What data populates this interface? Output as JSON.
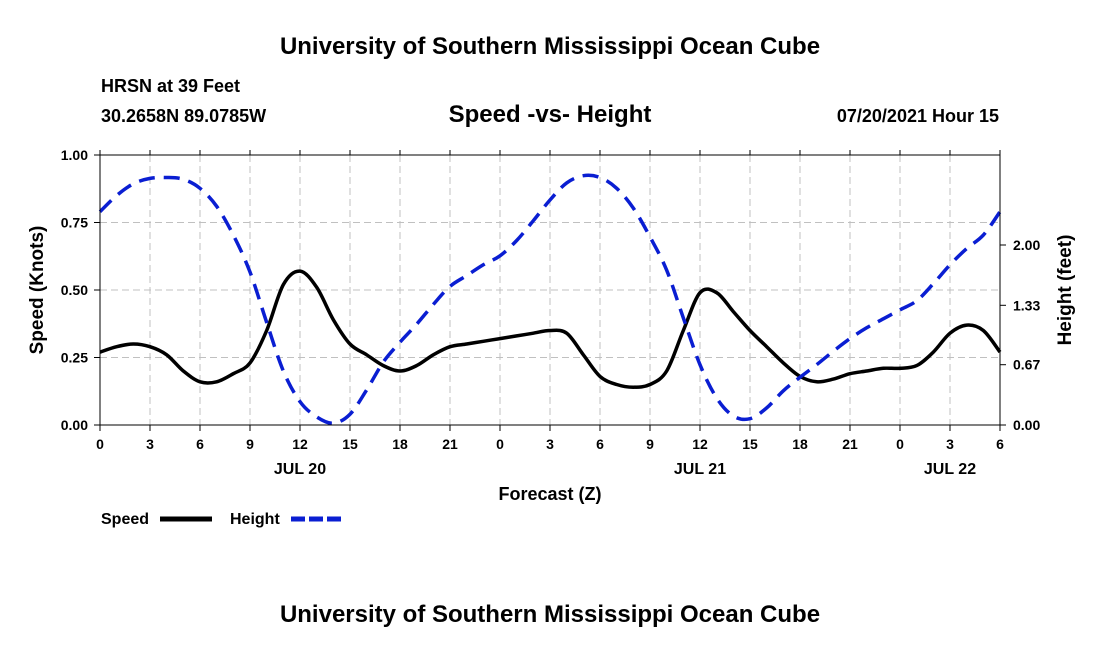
{
  "header": {
    "title": "University of Southern Mississippi Ocean Cube",
    "station": "HRSN at 39 Feet",
    "coords": "30.2658N  89.0785W",
    "subtitle": "Speed -vs- Height",
    "datetime": "07/20/2021 Hour 15"
  },
  "footer": {
    "title": "University of Southern Mississippi Ocean Cube"
  },
  "chart_data": {
    "type": "line",
    "title": "Speed -vs- Height",
    "xlabel": "Forecast (Z)",
    "xlim": [
      0,
      54
    ],
    "x_ticks": [
      0,
      3,
      6,
      9,
      12,
      15,
      18,
      21,
      24,
      27,
      30,
      33,
      36,
      39,
      42,
      45,
      48,
      51,
      54
    ],
    "x_tick_labels": [
      "0",
      "3",
      "6",
      "9",
      "12",
      "15",
      "18",
      "21",
      "0",
      "3",
      "6",
      "9",
      "12",
      "15",
      "18",
      "21",
      "0",
      "3",
      "6"
    ],
    "date_labels": [
      {
        "x": 12,
        "label": "JUL 20"
      },
      {
        "x": 36,
        "label": "JUL 21"
      },
      {
        "x": 51,
        "label": "JUL 22"
      }
    ],
    "y_left": {
      "label": "Speed (Knots)",
      "lim": [
        0,
        1.0
      ],
      "ticks": [
        0,
        0.25,
        0.5,
        0.75,
        1.0
      ],
      "tick_labels": [
        "0.00",
        "0.25",
        "0.50",
        "0.75",
        "1.00"
      ]
    },
    "y_right": {
      "label": "Height (feet)",
      "lim": [
        0,
        3.0
      ],
      "ticks": [
        0,
        0.67,
        1.33,
        2.0
      ],
      "tick_labels": [
        "0.00",
        "0.67",
        "1.33",
        "2.00"
      ]
    },
    "grid": true,
    "series": [
      {
        "name": "Speed",
        "axis": "left",
        "color": "#000000",
        "dash": "solid",
        "x": [
          0,
          1,
          2,
          3,
          4,
          5,
          6,
          7,
          8,
          9,
          10,
          11,
          12,
          13,
          14,
          15,
          16,
          17,
          18,
          19,
          20,
          21,
          22,
          23,
          24,
          25,
          26,
          27,
          28,
          29,
          30,
          31,
          32,
          33,
          34,
          35,
          36,
          37,
          38,
          39,
          40,
          41,
          42,
          43,
          44,
          45,
          46,
          47,
          48,
          49,
          50,
          51,
          52,
          53,
          54
        ],
        "y": [
          0.27,
          0.29,
          0.3,
          0.29,
          0.26,
          0.2,
          0.16,
          0.16,
          0.19,
          0.23,
          0.35,
          0.52,
          0.57,
          0.51,
          0.39,
          0.3,
          0.26,
          0.22,
          0.2,
          0.22,
          0.26,
          0.29,
          0.3,
          0.31,
          0.32,
          0.33,
          0.34,
          0.35,
          0.34,
          0.26,
          0.18,
          0.15,
          0.14,
          0.15,
          0.2,
          0.35,
          0.49,
          0.49,
          0.42,
          0.35,
          0.29,
          0.23,
          0.18,
          0.16,
          0.17,
          0.19,
          0.2,
          0.21,
          0.21,
          0.22,
          0.27,
          0.34,
          0.37,
          0.35,
          0.27
        ]
      },
      {
        "name": "Height",
        "axis": "right",
        "color": "#0a1ed2",
        "dash": "dashed",
        "x": [
          0,
          1,
          2,
          3,
          4,
          5,
          6,
          7,
          8,
          9,
          10,
          11,
          12,
          13,
          14,
          15,
          16,
          17,
          18,
          19,
          20,
          21,
          22,
          23,
          24,
          25,
          26,
          27,
          28,
          29,
          30,
          31,
          32,
          33,
          34,
          35,
          36,
          37,
          38,
          39,
          40,
          41,
          42,
          43,
          44,
          45,
          46,
          47,
          48,
          49,
          50,
          51,
          52,
          53,
          54
        ],
        "y": [
          2.37,
          2.55,
          2.68,
          2.74,
          2.75,
          2.73,
          2.63,
          2.43,
          2.11,
          1.7,
          1.14,
          0.6,
          0.26,
          0.09,
          0.02,
          0.12,
          0.39,
          0.7,
          0.92,
          1.12,
          1.34,
          1.54,
          1.66,
          1.78,
          1.88,
          2.05,
          2.27,
          2.5,
          2.69,
          2.77,
          2.75,
          2.63,
          2.41,
          2.09,
          1.72,
          1.19,
          0.67,
          0.3,
          0.1,
          0.07,
          0.19,
          0.38,
          0.53,
          0.67,
          0.82,
          0.96,
          1.08,
          1.18,
          1.28,
          1.38,
          1.57,
          1.78,
          1.96,
          2.11,
          2.37
        ]
      }
    ],
    "legend": {
      "placement": "bottom-left",
      "entries": [
        "Speed",
        "Height"
      ]
    }
  }
}
